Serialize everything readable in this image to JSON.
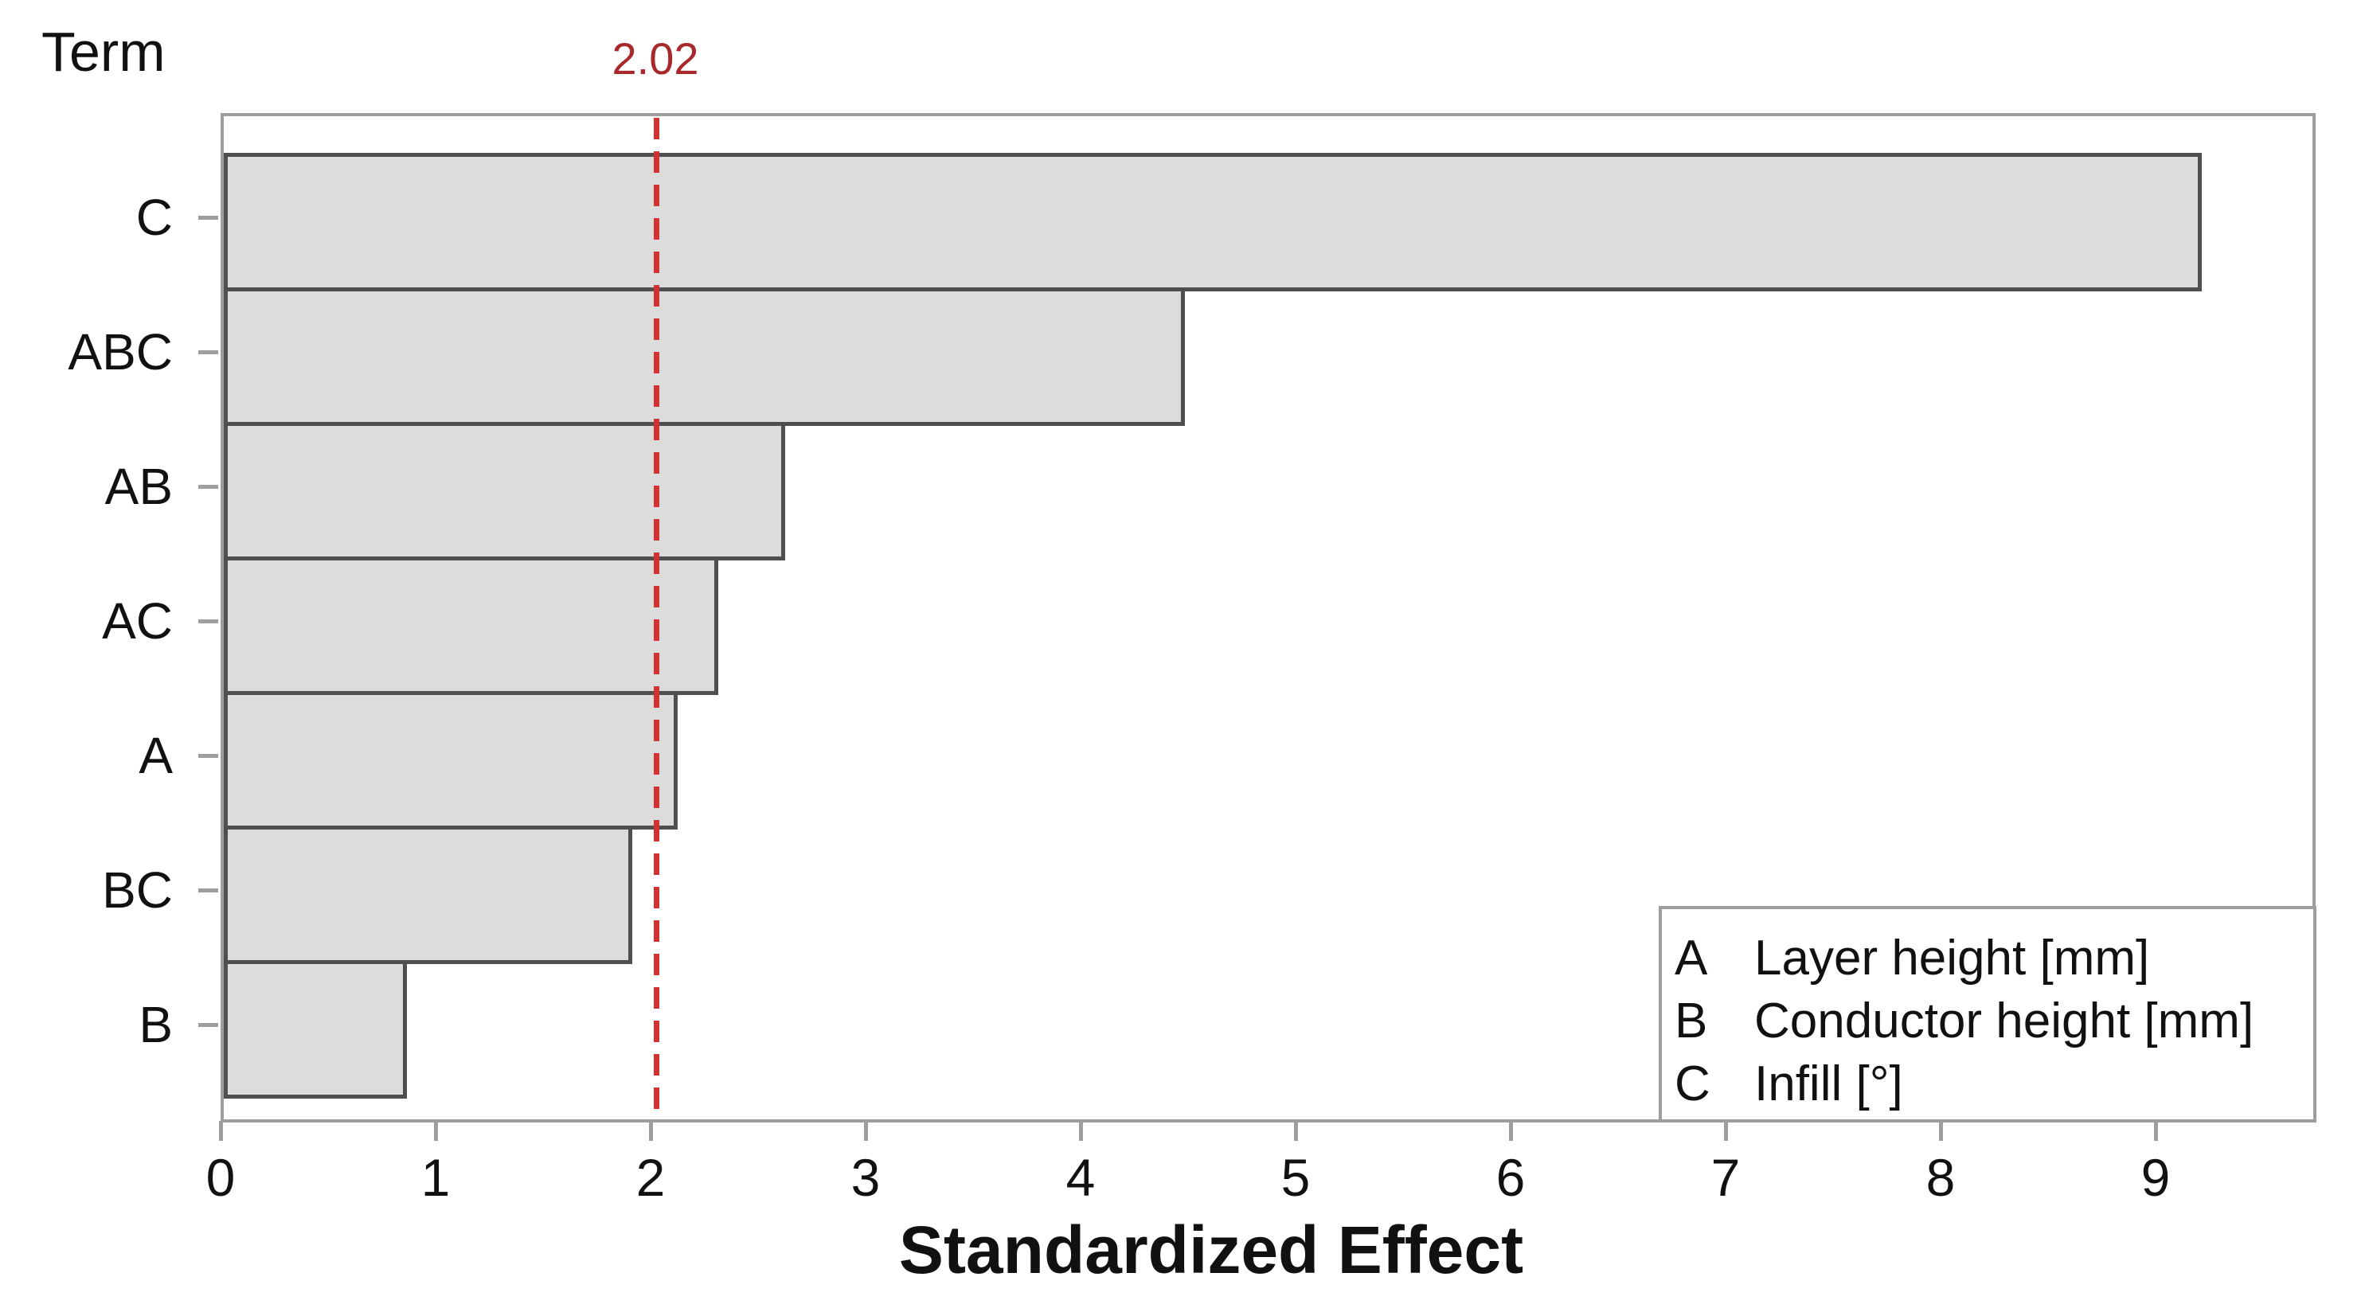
{
  "figure": {
    "term_axis_label": "Term",
    "reference_line_label": "2.02",
    "x_axis_title": "Standardized Effect"
  },
  "chart_data": {
    "type": "bar",
    "orientation": "horizontal",
    "title": "",
    "categories": [
      "C",
      "ABC",
      "AB",
      "AC",
      "A",
      "BC",
      "B"
    ],
    "values": [
      9.2,
      4.47,
      2.61,
      2.3,
      2.11,
      1.9,
      0.85
    ],
    "xlabel": "Standardized Effect",
    "ylabel": "Term",
    "xlim": [
      0,
      9.74
    ],
    "x_ticks": [
      "0",
      "1",
      "2",
      "3",
      "4",
      "5",
      "6",
      "7",
      "8",
      "9"
    ],
    "grid": "off",
    "reference_line": {
      "value": 2.02,
      "label": "2.02",
      "style": "dashed"
    },
    "legend_position": "bottom-right",
    "legend": [
      {
        "key": "A",
        "label": "Layer height [mm]"
      },
      {
        "key": "B",
        "label": "Conductor height [mm]"
      },
      {
        "key": "C",
        "label": "Infill [°]"
      }
    ],
    "colors": {
      "bar_fill": "#dcdcdc",
      "bar_border": "#4f4f4f",
      "frame": "#9e9e9e",
      "reference_line": "#d23232",
      "reference_label": "#a8282c",
      "text": "#111111"
    }
  }
}
